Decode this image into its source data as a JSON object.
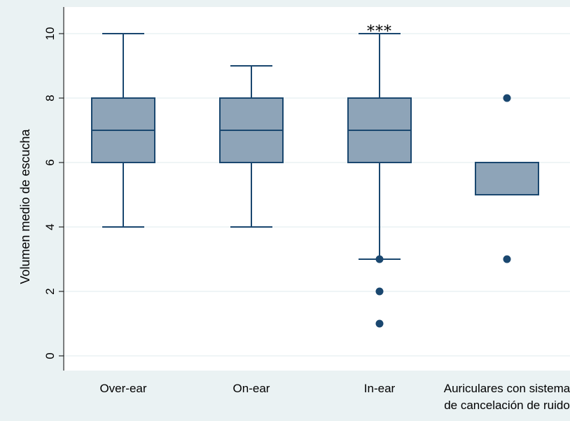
{
  "chart_data": {
    "type": "box",
    "ylabel": "Volumen medio de escucha",
    "xlabel": "",
    "ylim": [
      -0.3,
      10.8
    ],
    "yticks": [
      0,
      2,
      4,
      6,
      8,
      10
    ],
    "grid": true,
    "categories": [
      [
        "Over-ear"
      ],
      [
        "On-ear"
      ],
      [
        "In-ear"
      ],
      [
        "Auriculares con sistema",
        "de cancelación de ruido"
      ]
    ],
    "boxes": [
      {
        "whisker_low": 4,
        "q1": 6,
        "median": 7,
        "q3": 8,
        "whisker_high": 10,
        "outliers": []
      },
      {
        "whisker_low": 4,
        "q1": 6,
        "median": 7,
        "q3": 8,
        "whisker_high": 9,
        "outliers": []
      },
      {
        "whisker_low": 3,
        "q1": 6,
        "median": 7,
        "q3": 8,
        "whisker_high": 10,
        "outliers": [
          3,
          2,
          1
        ]
      },
      {
        "whisker_low": 5,
        "q1": 5,
        "median": 5,
        "q3": 6,
        "whisker_high": 6,
        "outliers": [
          8,
          3
        ]
      }
    ],
    "annotations": [
      {
        "category_index": 2,
        "text": "***"
      }
    ],
    "colors": {
      "box_fill": "#8ea4b8",
      "line": "#1a476f",
      "grid": "#eaf2f3",
      "background": "#eaf2f3",
      "plot_bg": "#ffffff"
    }
  }
}
